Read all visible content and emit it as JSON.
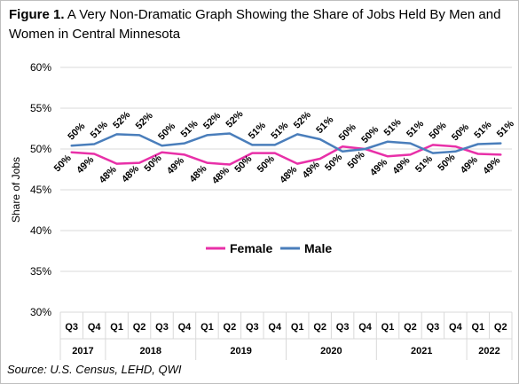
{
  "title": {
    "label": "Figure 1.",
    "text": "A Very Non-Dramatic Graph Showing the Share of Jobs Held By Men and Women in Central Minnesota"
  },
  "source": "Source: U.S. Census, LEHD, QWI",
  "chart_data": {
    "type": "line",
    "title": "Figure 1. A Very Non-Dramatic Graph Showing the Share of Jobs Held By Men and Women in Central Minnesota",
    "ylabel": "Share of Jobs",
    "xlabel": "",
    "ylim": [
      30,
      60
    ],
    "yticks": [
      "30%",
      "35%",
      "40%",
      "45%",
      "50%",
      "55%",
      "60%"
    ],
    "grid": true,
    "legend_position": "center",
    "categories": [
      "Q3",
      "Q4",
      "Q1",
      "Q2",
      "Q3",
      "Q4",
      "Q1",
      "Q2",
      "Q3",
      "Q4",
      "Q1",
      "Q2",
      "Q3",
      "Q4",
      "Q1",
      "Q2",
      "Q3",
      "Q4",
      "Q1",
      "Q2"
    ],
    "years": [
      {
        "label": "2017",
        "count": 2
      },
      {
        "label": "2018",
        "count": 4
      },
      {
        "label": "2019",
        "count": 4
      },
      {
        "label": "2020",
        "count": 4
      },
      {
        "label": "2021",
        "count": 4
      },
      {
        "label": "2022",
        "count": 2
      }
    ],
    "series": [
      {
        "name": "Female",
        "color": "#e830a8",
        "values": [
          49.6,
          49.4,
          48.2,
          48.3,
          49.6,
          49.3,
          48.3,
          48.1,
          49.5,
          49.5,
          48.2,
          48.8,
          50.3,
          50.0,
          49.1,
          49.3,
          50.5,
          50.3,
          49.4,
          49.3
        ],
        "labels": [
          "50%",
          "49%",
          "48%",
          "48%",
          "50%",
          "49%",
          "48%",
          "48%",
          "50%",
          "50%",
          "48%",
          "49%",
          "50%",
          "50%",
          "49%",
          "49%",
          "51%",
          "50%",
          "49%",
          "49%"
        ]
      },
      {
        "name": "Male",
        "color": "#4a7ebb",
        "values": [
          50.4,
          50.6,
          51.8,
          51.7,
          50.4,
          50.7,
          51.7,
          51.9,
          50.5,
          50.5,
          51.8,
          51.2,
          49.7,
          50.0,
          50.9,
          50.7,
          49.5,
          49.7,
          50.6,
          50.7
        ],
        "labels": [
          "50%",
          "51%",
          "52%",
          "52%",
          "50%",
          "51%",
          "52%",
          "52%",
          "51%",
          "51%",
          "52%",
          "51%",
          "50%",
          "50%",
          "51%",
          "51%",
          "50%",
          "50%",
          "51%",
          "51%"
        ]
      }
    ]
  }
}
